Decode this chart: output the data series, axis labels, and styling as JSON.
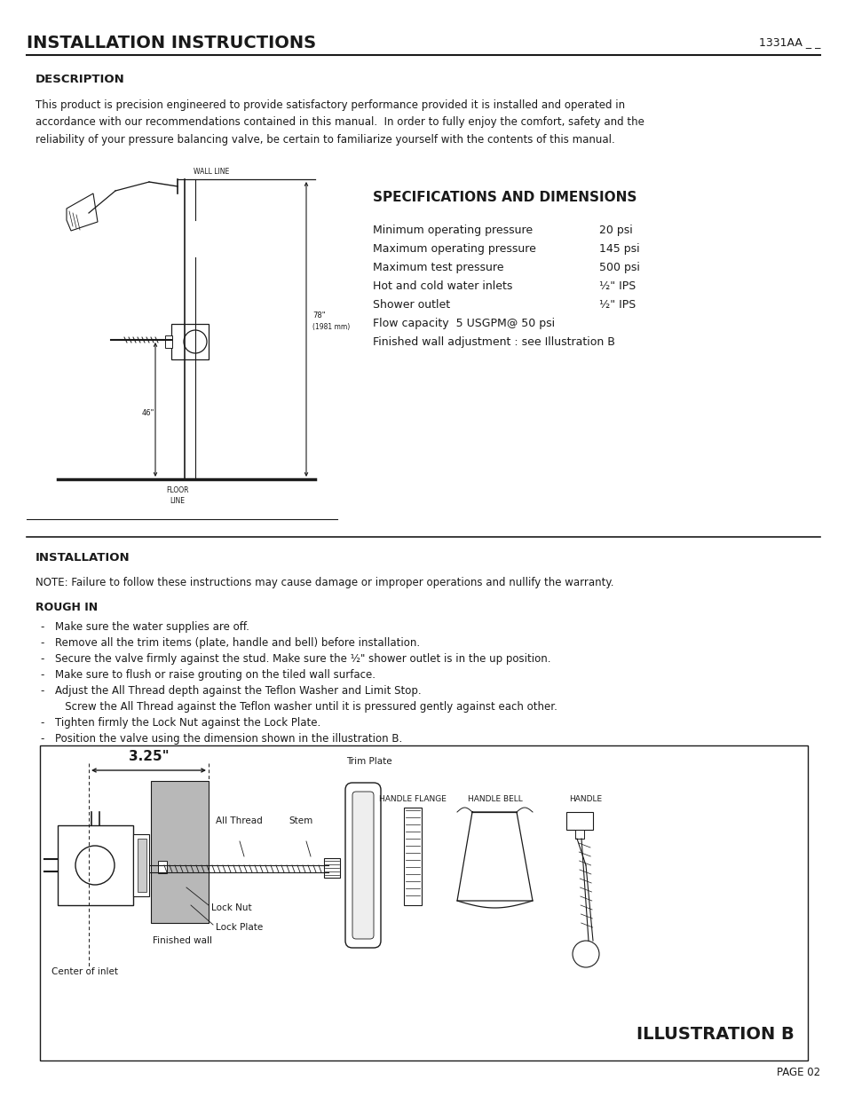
{
  "title": "INSTALLATION INSTRUCTIONS",
  "title_right": "1331AA _ _",
  "section1": "DESCRIPTION",
  "desc_text": "This product is precision engineered to provide satisfactory performance provided it is installed and operated in\naccordance with our recommendations contained in this manual.  In order to fully enjoy the comfort, safety and the\nreliability of your pressure balancing valve, be certain to familiarize yourself with the contents of this manual.",
  "specs_title": "SPECIFICATIONS AND DIMENSIONS",
  "specs": [
    [
      "Minimum operating pressure",
      "20 psi"
    ],
    [
      "Maximum operating pressure",
      "145 psi"
    ],
    [
      "Maximum test pressure",
      "500 psi"
    ],
    [
      "Hot and cold water inlets",
      "½\" IPS"
    ],
    [
      "Shower outlet",
      "½\" IPS"
    ],
    [
      "Flow capacity  5 USGPM@ 50 psi",
      ""
    ],
    [
      "Finished wall adjustment : see Illustration B",
      ""
    ]
  ],
  "section2": "INSTALLATION",
  "note_text": "NOTE: Failure to follow these instructions may cause damage or improper operations and nullify the warranty.",
  "rough_in": "ROUGH IN",
  "rough_in_bullets": [
    "Make sure the water supplies are off.",
    "Remove all the trim items (plate, handle and bell) before installation.",
    "Secure the valve firmly against the stud. Make sure the ½\" shower outlet is in the up position.",
    "Make sure to flush or raise grouting on the tiled wall surface.",
    "Adjust the All Thread depth against the Teflon Washer and Limit Stop.",
    "   Screw the All Thread against the Teflon washer until it is pressured gently against each other.",
    "Tighten firmly the Lock Nut against the Lock Plate.",
    "Position the valve using the dimension shown in the illustration B."
  ],
  "rough_in_dashes": [
    true,
    true,
    true,
    true,
    true,
    false,
    true,
    true
  ],
  "illus_b_title": "ILLUSTRATION B",
  "page": "PAGE 02",
  "bg_color": "#ffffff",
  "text_color": "#1a1a1a",
  "line_color": "#1a1a1a"
}
